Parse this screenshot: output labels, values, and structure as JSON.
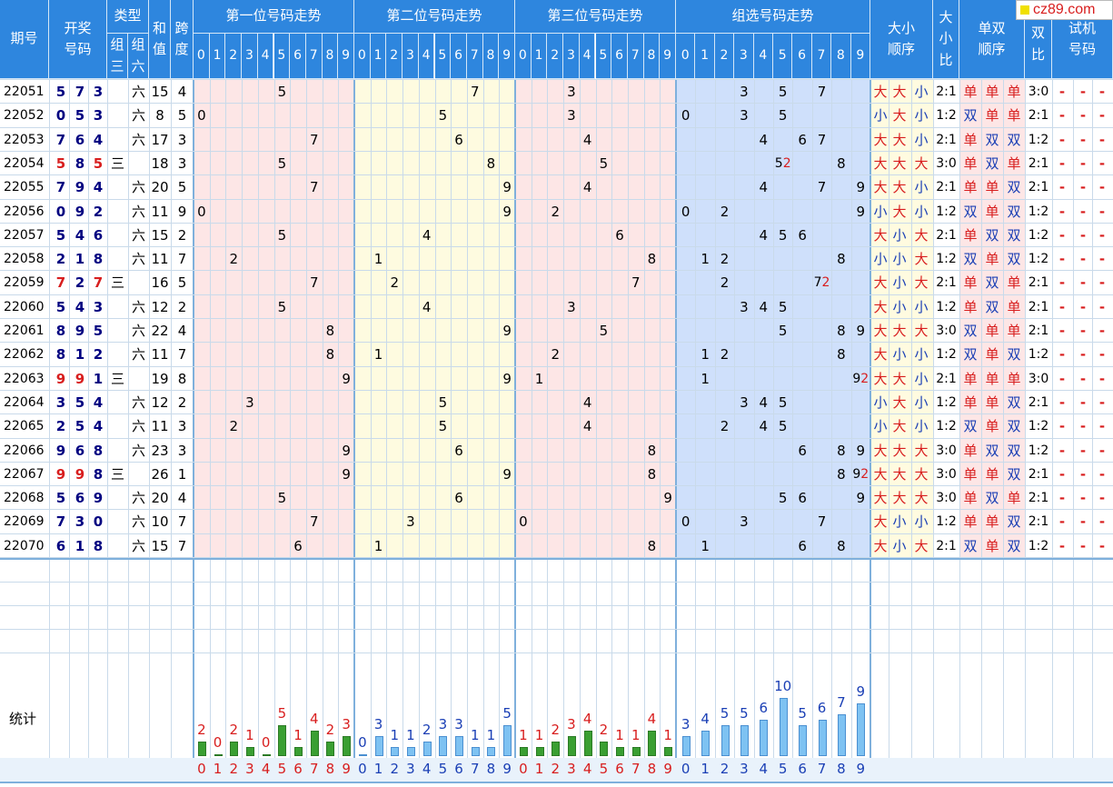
{
  "site_badge": "cz89.com",
  "headers": {
    "period": "期号",
    "draw": "开奖号码",
    "type": "类型",
    "type_z3": "组三",
    "type_z6": "组六",
    "sum": "和值",
    "span": "跨度",
    "pos1": "第一位号码走势",
    "pos2": "第二位号码走势",
    "pos3": "第三位号码走势",
    "group": "组选号码走势",
    "bs_order": "大小顺序",
    "bs_ratio": "大小比",
    "oe_order": "单双顺序",
    "oe_ratio": "单双比",
    "trial": "试机号码"
  },
  "digit_labels": [
    "0",
    "1",
    "2",
    "3",
    "4",
    "5",
    "6",
    "7",
    "8",
    "9"
  ],
  "draws": [
    {
      "period": "22051",
      "digits": [
        5,
        7,
        3
      ],
      "type": "六",
      "sum": 15,
      "span": 4,
      "bs": [
        "大",
        "大",
        "小"
      ],
      "bsr": "2:1",
      "oe": [
        "单",
        "单",
        "单"
      ],
      "oer": "3:0"
    },
    {
      "period": "22052",
      "digits": [
        0,
        5,
        3
      ],
      "type": "六",
      "sum": 8,
      "span": 5,
      "bs": [
        "小",
        "大",
        "小"
      ],
      "bsr": "1:2",
      "oe": [
        "双",
        "单",
        "单"
      ],
      "oer": "2:1"
    },
    {
      "period": "22053",
      "digits": [
        7,
        6,
        4
      ],
      "type": "六",
      "sum": 17,
      "span": 3,
      "bs": [
        "大",
        "大",
        "小"
      ],
      "bsr": "2:1",
      "oe": [
        "单",
        "双",
        "双"
      ],
      "oer": "1:2"
    },
    {
      "period": "22054",
      "digits": [
        5,
        8,
        5
      ],
      "type": "三",
      "sum": 18,
      "span": 3,
      "bs": [
        "大",
        "大",
        "大"
      ],
      "bsr": "3:0",
      "oe": [
        "单",
        "双",
        "单"
      ],
      "oer": "2:1"
    },
    {
      "period": "22055",
      "digits": [
        7,
        9,
        4
      ],
      "type": "六",
      "sum": 20,
      "span": 5,
      "bs": [
        "大",
        "大",
        "小"
      ],
      "bsr": "2:1",
      "oe": [
        "单",
        "单",
        "双"
      ],
      "oer": "2:1"
    },
    {
      "period": "22056",
      "digits": [
        0,
        9,
        2
      ],
      "type": "六",
      "sum": 11,
      "span": 9,
      "bs": [
        "小",
        "大",
        "小"
      ],
      "bsr": "1:2",
      "oe": [
        "双",
        "单",
        "双"
      ],
      "oer": "1:2"
    },
    {
      "period": "22057",
      "digits": [
        5,
        4,
        6
      ],
      "type": "六",
      "sum": 15,
      "span": 2,
      "bs": [
        "大",
        "小",
        "大"
      ],
      "bsr": "2:1",
      "oe": [
        "单",
        "双",
        "双"
      ],
      "oer": "1:2"
    },
    {
      "period": "22058",
      "digits": [
        2,
        1,
        8
      ],
      "type": "六",
      "sum": 11,
      "span": 7,
      "bs": [
        "小",
        "小",
        "大"
      ],
      "bsr": "1:2",
      "oe": [
        "双",
        "单",
        "双"
      ],
      "oer": "1:2"
    },
    {
      "period": "22059",
      "digits": [
        7,
        2,
        7
      ],
      "type": "三",
      "sum": 16,
      "span": 5,
      "bs": [
        "大",
        "小",
        "大"
      ],
      "bsr": "2:1",
      "oe": [
        "单",
        "双",
        "单"
      ],
      "oer": "2:1"
    },
    {
      "period": "22060",
      "digits": [
        5,
        4,
        3
      ],
      "type": "六",
      "sum": 12,
      "span": 2,
      "bs": [
        "大",
        "小",
        "小"
      ],
      "bsr": "1:2",
      "oe": [
        "单",
        "双",
        "单"
      ],
      "oer": "2:1"
    },
    {
      "period": "22061",
      "digits": [
        8,
        9,
        5
      ],
      "type": "六",
      "sum": 22,
      "span": 4,
      "bs": [
        "大",
        "大",
        "大"
      ],
      "bsr": "3:0",
      "oe": [
        "双",
        "单",
        "单"
      ],
      "oer": "2:1"
    },
    {
      "period": "22062",
      "digits": [
        8,
        1,
        2
      ],
      "type": "六",
      "sum": 11,
      "span": 7,
      "bs": [
        "大",
        "小",
        "小"
      ],
      "bsr": "1:2",
      "oe": [
        "双",
        "单",
        "双"
      ],
      "oer": "1:2"
    },
    {
      "period": "22063",
      "digits": [
        9,
        9,
        1
      ],
      "type": "三",
      "sum": 19,
      "span": 8,
      "bs": [
        "大",
        "大",
        "小"
      ],
      "bsr": "2:1",
      "oe": [
        "单",
        "单",
        "单"
      ],
      "oer": "3:0"
    },
    {
      "period": "22064",
      "digits": [
        3,
        5,
        4
      ],
      "type": "六",
      "sum": 12,
      "span": 2,
      "bs": [
        "小",
        "大",
        "小"
      ],
      "bsr": "1:2",
      "oe": [
        "单",
        "单",
        "双"
      ],
      "oer": "2:1"
    },
    {
      "period": "22065",
      "digits": [
        2,
        5,
        4
      ],
      "type": "六",
      "sum": 11,
      "span": 3,
      "bs": [
        "小",
        "大",
        "小"
      ],
      "bsr": "1:2",
      "oe": [
        "双",
        "单",
        "双"
      ],
      "oer": "1:2"
    },
    {
      "period": "22066",
      "digits": [
        9,
        6,
        8
      ],
      "type": "六",
      "sum": 23,
      "span": 3,
      "bs": [
        "大",
        "大",
        "大"
      ],
      "bsr": "3:0",
      "oe": [
        "单",
        "双",
        "双"
      ],
      "oer": "1:2"
    },
    {
      "period": "22067",
      "digits": [
        9,
        9,
        8
      ],
      "type": "三",
      "sum": 26,
      "span": 1,
      "bs": [
        "大",
        "大",
        "大"
      ],
      "bsr": "3:0",
      "oe": [
        "单",
        "单",
        "双"
      ],
      "oer": "2:1"
    },
    {
      "period": "22068",
      "digits": [
        5,
        6,
        9
      ],
      "type": "六",
      "sum": 20,
      "span": 4,
      "bs": [
        "大",
        "大",
        "大"
      ],
      "bsr": "3:0",
      "oe": [
        "单",
        "双",
        "单"
      ],
      "oer": "2:1"
    },
    {
      "period": "22069",
      "digits": [
        7,
        3,
        0
      ],
      "type": "六",
      "sum": 10,
      "span": 7,
      "bs": [
        "大",
        "小",
        "小"
      ],
      "bsr": "1:2",
      "oe": [
        "单",
        "单",
        "双"
      ],
      "oer": "2:1"
    },
    {
      "period": "22070",
      "digits": [
        6,
        1,
        8
      ],
      "type": "六",
      "sum": 15,
      "span": 7,
      "bs": [
        "大",
        "小",
        "大"
      ],
      "bsr": "2:1",
      "oe": [
        "双",
        "单",
        "双"
      ],
      "oer": "1:2"
    }
  ],
  "trial_placeholder": "-",
  "stats_label": "统计",
  "stats": {
    "pos1": [
      2,
      0,
      2,
      1,
      0,
      5,
      1,
      4,
      2,
      3
    ],
    "pos2": [
      0,
      3,
      1,
      1,
      2,
      3,
      3,
      1,
      1,
      5
    ],
    "pos3": [
      1,
      1,
      2,
      3,
      4,
      2,
      1,
      1,
      4,
      1
    ],
    "group": [
      3,
      4,
      5,
      5,
      6,
      10,
      5,
      6,
      7,
      9
    ]
  },
  "colors": {
    "header": "#2e86de",
    "pos1_bg": "#fde6e6",
    "pos2_bg": "#fefbe0",
    "pos3_bg": "#fde6e6",
    "group_bg": "#cfe0fb",
    "bs_bg": "#fffbe0",
    "oe_bg": "#fde6e6",
    "big_red": "#d81e1e",
    "small_blue": "#1a3fb5",
    "bar_green": "#3a9f32",
    "bar_blue": "#7ec2f2"
  }
}
